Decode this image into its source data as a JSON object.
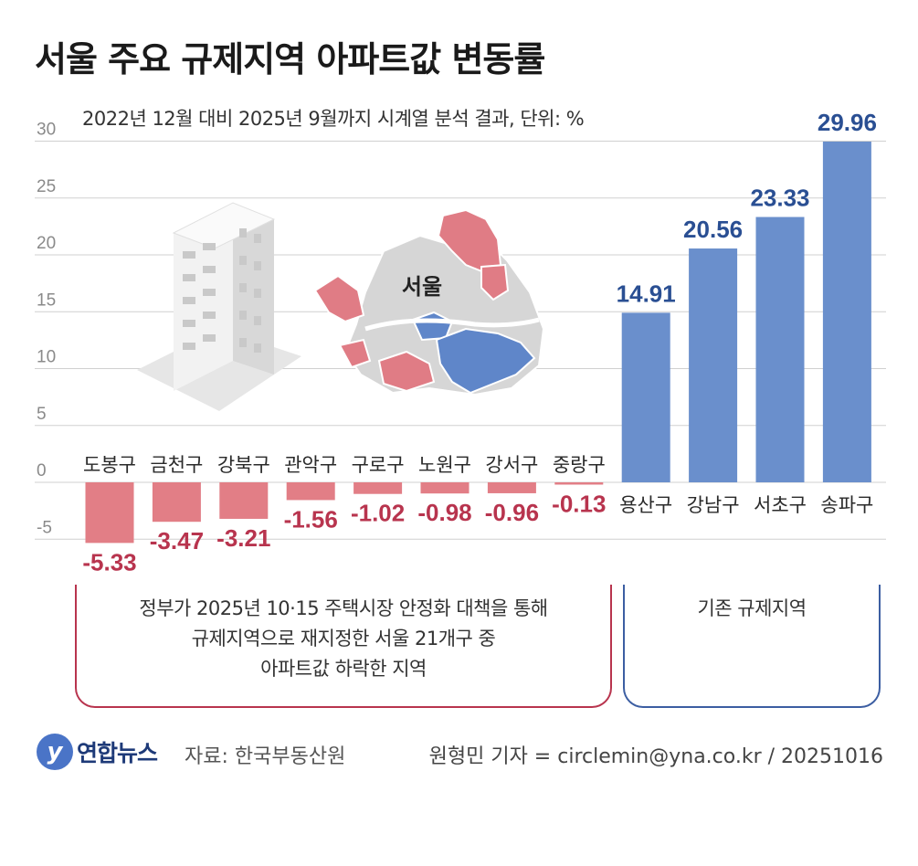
{
  "header": {
    "title": "서울 주요 규제지역 아파트값 변동률",
    "subtitle": "2022년 12월 대비 2025년 9월까지 시계열 분석 결과, 단위: %"
  },
  "map": {
    "label": "서울"
  },
  "groups": {
    "red_description": [
      "정부가 2025년 10·15 주택시장 안정화 대책을 통해",
      "규제지역으로 재지정한 서울 21개구 중",
      "아파트값 하락한 지역"
    ],
    "blue_description": "기존 규제지역"
  },
  "footer": {
    "logo_mark": "y",
    "logo_text": "연합뉴스",
    "source": "자료: 한국부동산원",
    "credit": "원형민 기자 = circlemin@yna.co.kr / 20251016"
  },
  "colors": {
    "negative": "#e27e86",
    "negative_label": "#b8344e",
    "positive": "#6a8fcc",
    "positive_label": "#2a4f93",
    "grid": "#d0d0d0"
  },
  "chart_data": {
    "type": "bar",
    "unit": "%",
    "categories": [
      "도봉구",
      "금천구",
      "강북구",
      "관악구",
      "구로구",
      "노원구",
      "강서구",
      "중랑구",
      "용산구",
      "강남구",
      "서초구",
      "송파구"
    ],
    "values": [
      -5.33,
      -3.47,
      -3.21,
      -1.56,
      -1.02,
      -0.98,
      -0.96,
      -0.13,
      14.91,
      20.56,
      23.33,
      29.96
    ],
    "value_labels": [
      "-5.33",
      "-3.47",
      "-3.21",
      "-1.56",
      "-1.02",
      "-0.98",
      "-0.96",
      "-0.13",
      "14.91",
      "20.56",
      "23.33",
      "29.96"
    ],
    "ylim": [
      -5,
      30
    ],
    "yticks": [
      30,
      25,
      20,
      15,
      10,
      5,
      0,
      -5
    ],
    "grid": true
  }
}
